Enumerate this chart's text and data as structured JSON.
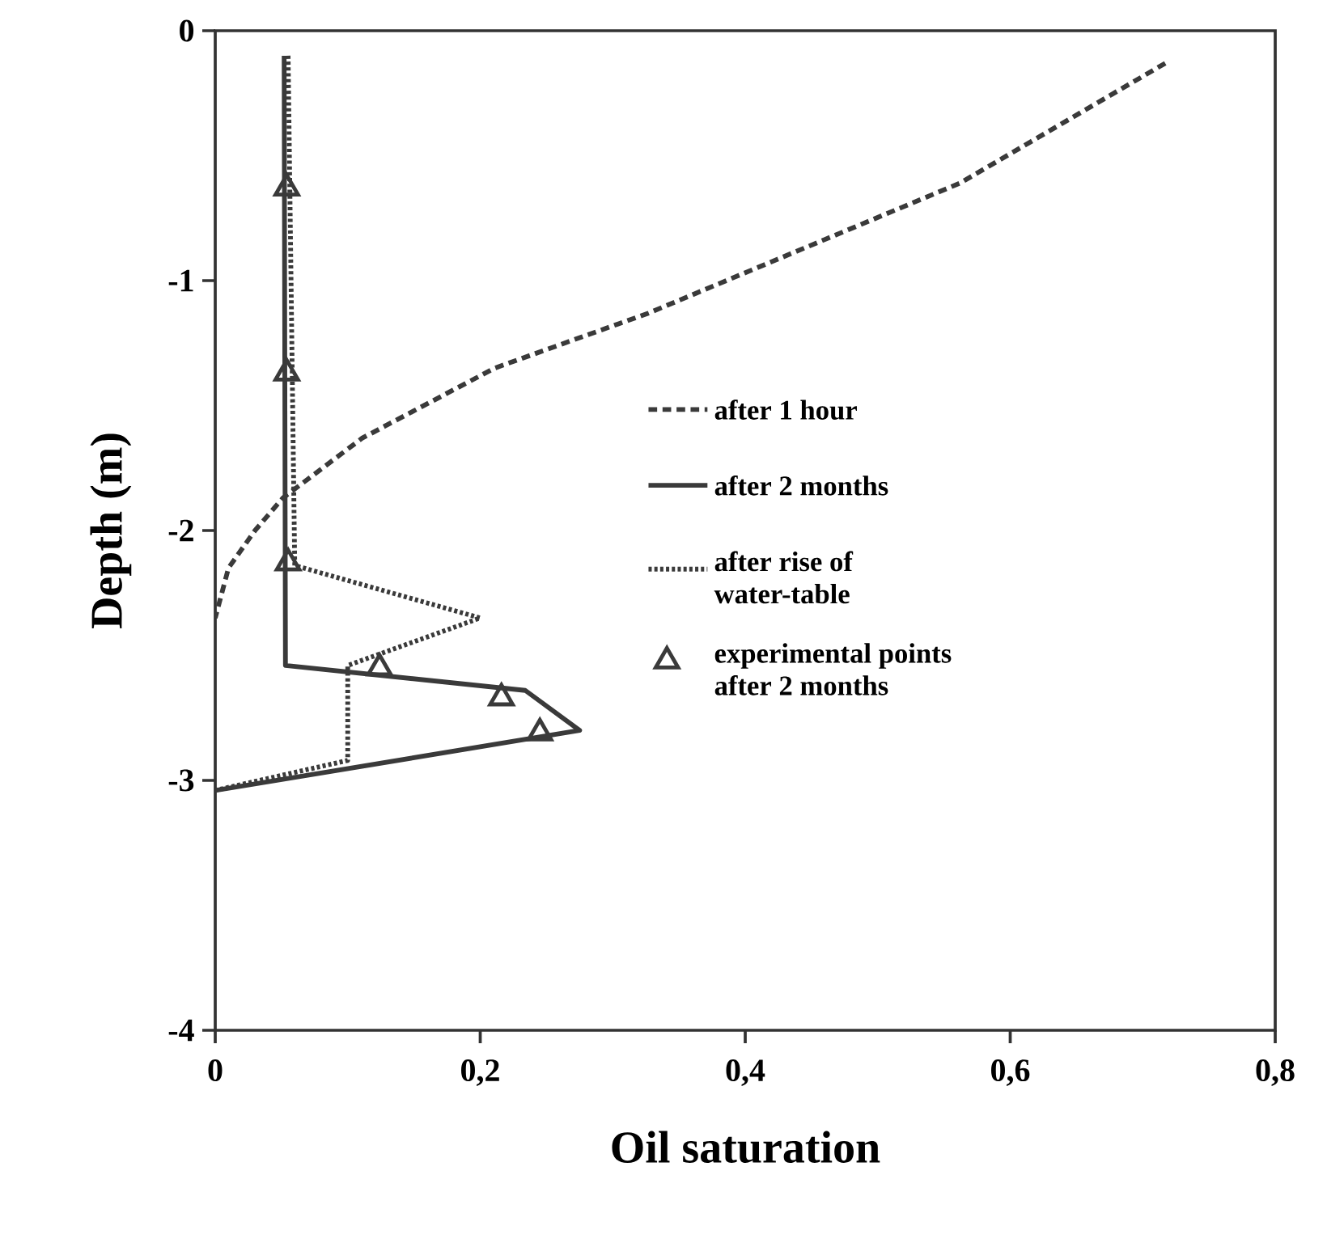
{
  "chart_data": {
    "type": "line",
    "xlabel": "Oil saturation",
    "ylabel": "Depth (m)",
    "xlim": [
      0,
      0.8
    ],
    "ylim": [
      -4,
      0
    ],
    "xticks": [
      0,
      {
        "value": 0.2,
        "label": "0,2"
      },
      {
        "value": 0.4,
        "label": "0,4"
      },
      {
        "value": 0.6,
        "label": "0,6"
      },
      {
        "value": 0.8,
        "label": "0,8"
      }
    ],
    "yticks": [
      0,
      -1,
      -2,
      -3,
      -4
    ],
    "grid": false,
    "legend": "center",
    "series": [
      {
        "name": "after 1 hour",
        "color": "#3a3a3a",
        "line_style": "dashed",
        "x": [
          0.717,
          0.562,
          0.327,
          0.211,
          0.111,
          0.051,
          0.03,
          0.01,
          0
        ],
        "values": [
          -0.13,
          -0.61,
          -1.13,
          -1.35,
          -1.63,
          -1.87,
          -2.0,
          -2.15,
          -2.35
        ]
      },
      {
        "name": "after 2 months",
        "color": "#3a3a3a",
        "line_style": "solid",
        "x": [
          0.052,
          0.053,
          0.234,
          0.275,
          0
        ],
        "values": [
          -0.1,
          -2.54,
          -2.64,
          -2.8,
          -3.04
        ]
      },
      {
        "name": "after rise of water-table",
        "color": "#3a3a3a",
        "line_style": "dotted",
        "x": [
          0.055,
          0.06,
          0.2,
          0.1,
          0.1,
          0
        ],
        "values": [
          -0.1,
          -2.14,
          -2.35,
          -2.54,
          -2.92,
          -3.04
        ]
      },
      {
        "name": "experimental points after 2 months",
        "type": "scatter",
        "marker": "triangle",
        "color": "#3a3a3a",
        "x": [
          0.054,
          0.054,
          0.055,
          0.124,
          0.216,
          0.245
        ],
        "values": [
          -0.63,
          -1.37,
          -2.13,
          -2.55,
          -2.67,
          -2.81
        ]
      }
    ]
  }
}
